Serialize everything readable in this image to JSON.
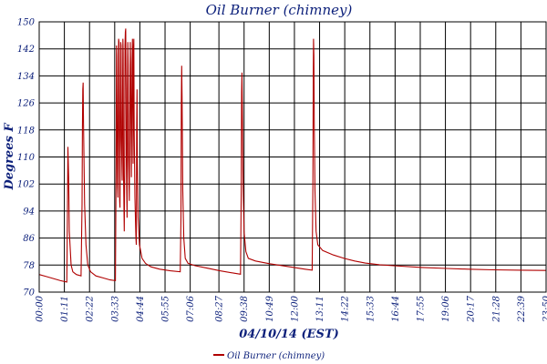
{
  "chart_data": {
    "type": "line",
    "title": "Oil Burner (chimney)",
    "xlabel": "04/10/14 (EST)",
    "ylabel": "Degrees F",
    "ylim": [
      70,
      150
    ],
    "xlim": [
      "00:00",
      "23:50"
    ],
    "grid": true,
    "legend_position": "bottom-center",
    "series_color": "#b00000",
    "y_ticks": [
      "70",
      "78",
      "86",
      "94",
      "102",
      "110",
      "118",
      "126",
      "134",
      "142",
      "150"
    ],
    "x_ticks": [
      {
        "label": "00:00",
        "minute": 0
      },
      {
        "label": "01:11",
        "minute": 71
      },
      {
        "label": "02:22",
        "minute": 142
      },
      {
        "label": "03:33",
        "minute": 213
      },
      {
        "label": "04:44",
        "minute": 284
      },
      {
        "label": "05:55",
        "minute": 355
      },
      {
        "label": "07:06",
        "minute": 426
      },
      {
        "label": "08:27",
        "minute": 507
      },
      {
        "label": "09:38",
        "minute": 578
      },
      {
        "label": "10:49",
        "minute": 649
      },
      {
        "label": "12:00",
        "minute": 720
      },
      {
        "label": "13:11",
        "minute": 791
      },
      {
        "label": "14:22",
        "minute": 862
      },
      {
        "label": "15:33",
        "minute": 933
      },
      {
        "label": "16:44",
        "minute": 1004
      },
      {
        "label": "17:55",
        "minute": 1075
      },
      {
        "label": "19:06",
        "minute": 1146
      },
      {
        "label": "20:17",
        "minute": 1217
      },
      {
        "label": "21:28",
        "minute": 1288
      },
      {
        "label": "22:39",
        "minute": 1359
      },
      {
        "label": "23:50",
        "minute": 1430
      }
    ],
    "series": [
      {
        "name": "Oil Burner (chimney)",
        "points": [
          [
            0,
            75.2
          ],
          [
            20,
            74.6
          ],
          [
            40,
            74.0
          ],
          [
            60,
            73.4
          ],
          [
            78,
            73.0
          ],
          [
            80,
            98
          ],
          [
            81,
            113
          ],
          [
            83,
            104
          ],
          [
            85,
            88
          ],
          [
            90,
            78
          ],
          [
            95,
            76
          ],
          [
            105,
            75.2
          ],
          [
            118,
            74.8
          ],
          [
            121,
            96
          ],
          [
            122,
            118
          ],
          [
            123,
            130
          ],
          [
            124,
            132
          ],
          [
            125,
            120
          ],
          [
            128,
            96
          ],
          [
            132,
            84
          ],
          [
            137,
            78
          ],
          [
            145,
            76
          ],
          [
            160,
            74.8
          ],
          [
            180,
            74.2
          ],
          [
            200,
            73.6
          ],
          [
            215,
            73.4
          ],
          [
            217,
            108
          ],
          [
            218,
            143
          ],
          [
            219,
            140
          ],
          [
            221,
            102
          ],
          [
            222,
            98
          ],
          [
            224,
            145
          ],
          [
            225,
            144
          ],
          [
            226,
            116
          ],
          [
            227,
            97
          ],
          [
            228,
            95
          ],
          [
            230,
            144
          ],
          [
            231,
            143
          ],
          [
            232,
            115
          ],
          [
            234,
            103
          ],
          [
            236,
            145
          ],
          [
            237,
            141
          ],
          [
            238,
            105
          ],
          [
            240,
            88
          ],
          [
            241,
            104
          ],
          [
            242,
            143
          ],
          [
            243,
            147
          ],
          [
            244,
            148
          ],
          [
            245,
            130
          ],
          [
            246,
            109
          ],
          [
            248,
            92
          ],
          [
            249,
            130
          ],
          [
            250,
            144
          ],
          [
            251,
            137
          ],
          [
            252,
            110
          ],
          [
            254,
            97
          ],
          [
            256,
            125
          ],
          [
            257,
            144
          ],
          [
            258,
            138
          ],
          [
            259,
            120
          ],
          [
            260,
            104
          ],
          [
            262,
            138
          ],
          [
            263,
            145
          ],
          [
            264,
            130
          ],
          [
            265,
            108
          ],
          [
            266,
            142
          ],
          [
            267,
            145
          ],
          [
            268,
            118
          ],
          [
            270,
            98
          ],
          [
            273,
            86
          ],
          [
            274,
            84
          ],
          [
            275,
            118
          ],
          [
            276,
            130
          ],
          [
            277,
            108
          ],
          [
            279,
            92
          ],
          [
            283,
            84
          ],
          [
            290,
            80
          ],
          [
            300,
            78.5
          ],
          [
            315,
            77.5
          ],
          [
            340,
            76.8
          ],
          [
            370,
            76.3
          ],
          [
            398,
            76.0
          ],
          [
            400,
            92
          ],
          [
            401,
            126
          ],
          [
            402,
            137
          ],
          [
            403,
            128
          ],
          [
            405,
            100
          ],
          [
            408,
            86
          ],
          [
            412,
            80
          ],
          [
            420,
            78.5
          ],
          [
            440,
            77.8
          ],
          [
            470,
            77.2
          ],
          [
            510,
            76.3
          ],
          [
            550,
            75.6
          ],
          [
            568,
            75.3
          ],
          [
            570,
            100
          ],
          [
            571,
            129
          ],
          [
            572,
            135
          ],
          [
            573,
            125
          ],
          [
            575,
            102
          ],
          [
            578,
            88
          ],
          [
            583,
            82
          ],
          [
            590,
            80
          ],
          [
            610,
            79.2
          ],
          [
            650,
            78.4
          ],
          [
            700,
            77.6
          ],
          [
            750,
            76.8
          ],
          [
            770,
            76.5
          ],
          [
            772,
            101
          ],
          [
            773,
            133
          ],
          [
            774,
            145
          ],
          [
            775,
            140
          ],
          [
            776,
            120
          ],
          [
            778,
            100
          ],
          [
            781,
            88
          ],
          [
            786,
            84
          ],
          [
            800,
            82.3
          ],
          [
            830,
            81.0
          ],
          [
            860,
            80.0
          ],
          [
            890,
            79.2
          ],
          [
            920,
            78.6
          ],
          [
            960,
            78.1
          ],
          [
            1000,
            77.8
          ],
          [
            1080,
            77.3
          ],
          [
            1150,
            77.0
          ],
          [
            1210,
            76.8
          ],
          [
            1280,
            76.6
          ],
          [
            1360,
            76.5
          ],
          [
            1430,
            76.4
          ]
        ]
      }
    ]
  }
}
